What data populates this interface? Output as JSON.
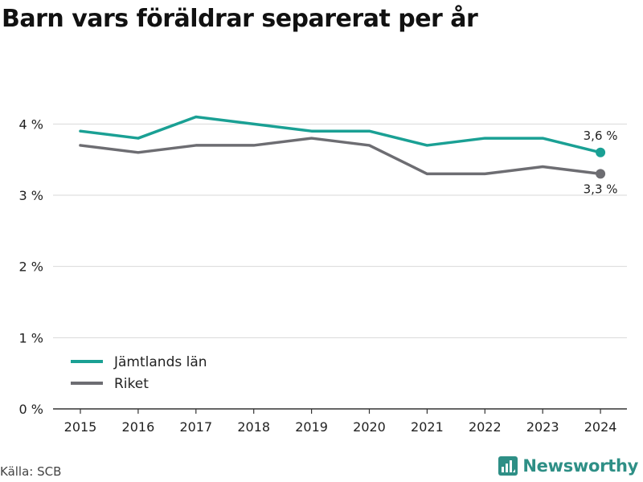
{
  "title": "Barn vars föräldrar separerat per år",
  "source": "Källa: SCB",
  "brand": "Newsworthy",
  "colors": {
    "jamtland": "#1aa094",
    "riket": "#6d6d72",
    "grid": "#d9d9d9",
    "axis": "#333333"
  },
  "chart_data": {
    "type": "line",
    "title": "Barn vars föräldrar separerat per år",
    "x": [
      "2015",
      "2016",
      "2017",
      "2018",
      "2019",
      "2020",
      "2021",
      "2022",
      "2023",
      "2024"
    ],
    "series": [
      {
        "name": "Jämtlands län",
        "values": [
          3.9,
          3.8,
          4.1,
          4.0,
          3.9,
          3.9,
          3.7,
          3.8,
          3.8,
          3.6
        ]
      },
      {
        "name": "Riket",
        "values": [
          3.7,
          3.6,
          3.7,
          3.7,
          3.8,
          3.7,
          3.3,
          3.3,
          3.4,
          3.3
        ]
      }
    ],
    "ylim": [
      0,
      4.5
    ],
    "yticks": [
      "0 %",
      "1 %",
      "2 %",
      "3 %",
      "4 %"
    ],
    "end_labels": [
      "3,6 %",
      "3,3 %"
    ],
    "grid": true,
    "legend": "bottom-left"
  }
}
